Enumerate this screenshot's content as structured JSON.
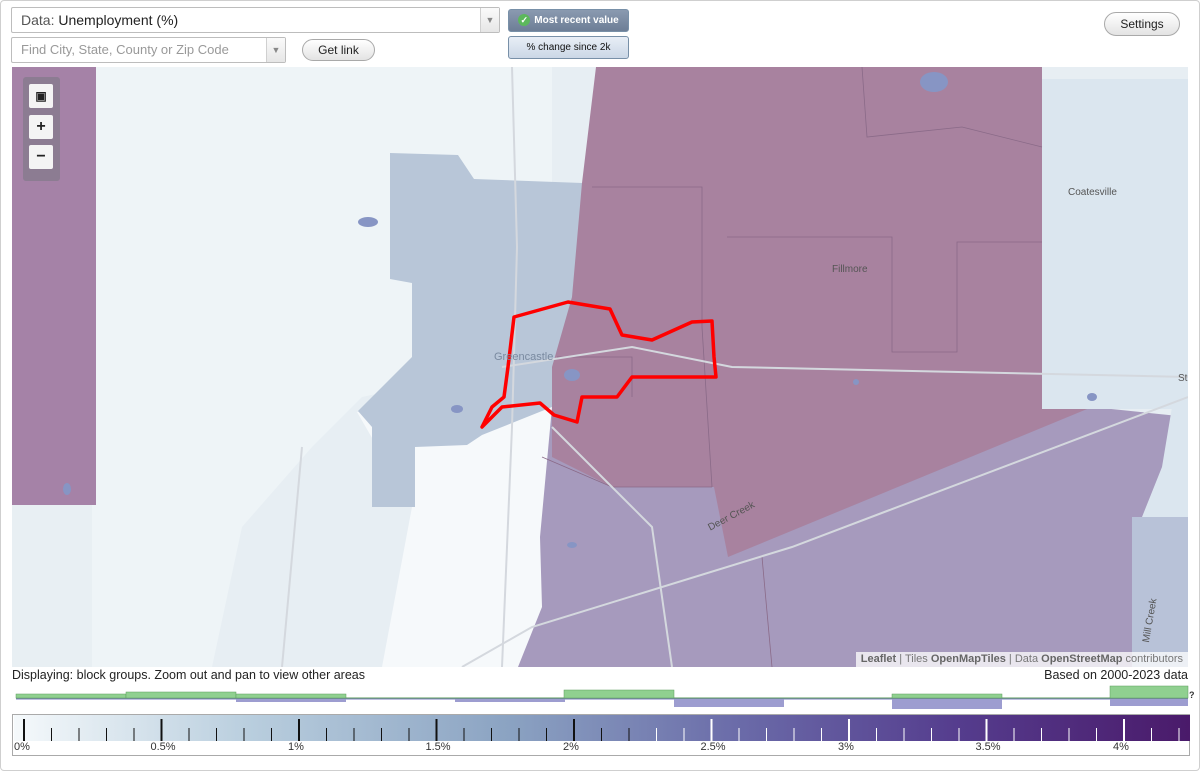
{
  "header": {
    "data_prefix": "Data:",
    "data_value": "Unemployment (%)",
    "search_placeholder": "Find City, State, County or Zip Code",
    "get_link_label": "Get link",
    "settings_label": "Settings",
    "toggle_recent": "Most recent value",
    "toggle_change": "% change since 2k"
  },
  "map": {
    "labels": [
      "Greencastle",
      "Fillmore",
      "Coatesville",
      "Deer Creek",
      "Mill Creek",
      "St"
    ],
    "attribution": {
      "leaflet": "Leaflet",
      "tiles_prefix": "Tiles",
      "tiles": "OpenMapTiles",
      "data_prefix": "Data",
      "data": "OpenStreetMap",
      "suffix": "contributors"
    }
  },
  "status": {
    "displaying": "Displaying: block groups. Zoom out and pan to view other areas",
    "based_on": "Based on 2000-2023 data"
  },
  "legend": {
    "tick_labels": [
      "0%",
      "0.5%",
      "1%",
      "1.5%",
      "2%",
      "2.5%",
      "3%",
      "3.5%",
      "4%"
    ],
    "histogram_help": "?"
  },
  "colors": {
    "highlight_outline": "#ff0000",
    "histogram_green": "#90d090",
    "histogram_purple": "#9d9dd0"
  }
}
